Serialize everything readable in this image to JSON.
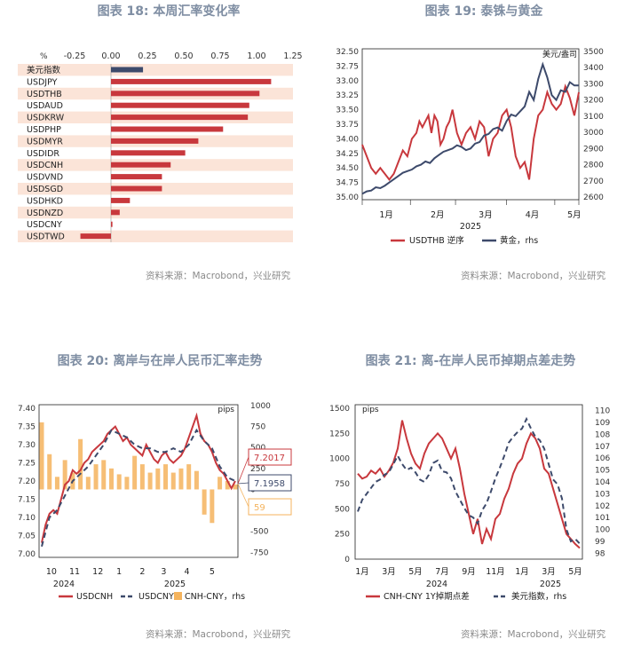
{
  "panels": [
    {
      "title": "图表 18: 本周汇率变化率",
      "source": "资料来源：Macrobond，兴业研究"
    },
    {
      "title": "图表 19: 泰铢与黄金",
      "source": "资料来源：Macrobond，兴业研究"
    },
    {
      "title": "图表 20: 离岸与在岸人民币汇率走势",
      "source": "资料来源：Macrobond，兴业研究"
    },
    {
      "title": "图表 21: 离-在岸人民币掉期点差走势",
      "source": "资料来源：Macrobond，兴业研究"
    }
  ],
  "colors": {
    "red": "#c8383d",
    "navy": "#3d4a6b",
    "orange": "#f4b35d",
    "band": "#fbe4d8",
    "title": "#7f8ea3"
  },
  "chart_data": [
    {
      "type": "bar",
      "unit": "%",
      "categories": [
        "美元指数",
        "USDJPY",
        "USDTHB",
        "USDAUD",
        "USDKRW",
        "USDPHP",
        "USDMYR",
        "USDIDR",
        "USDCNH",
        "USDVND",
        "USDSGD",
        "USDHKD",
        "USDNZD",
        "USDCNY",
        "USDTWD"
      ],
      "values": [
        0.22,
        1.1,
        1.02,
        0.95,
        0.94,
        0.77,
        0.6,
        0.51,
        0.41,
        0.35,
        0.35,
        0.13,
        0.06,
        0.01,
        -0.21
      ],
      "highlight_index": 0,
      "xlim": [
        -0.25,
        1.25
      ],
      "xticks": [
        "-0.25",
        "0.00",
        "0.25",
        "0.50",
        "0.75",
        "1.00",
        "1.25"
      ],
      "orientation": "horizontal"
    },
    {
      "type": "line",
      "x_tick_labels": [
        "1月",
        "2月",
        "3月",
        "4月",
        "5月"
      ],
      "year_label": "2025",
      "left_axis_ticks": [
        "32.50",
        "32.75",
        "33.00",
        "33.25",
        "33.50",
        "33.75",
        "34.00",
        "34.25",
        "34.50",
        "34.75",
        "35.00"
      ],
      "left_ylim": [
        32.5,
        35.0
      ],
      "left_inverted": true,
      "right_axis_ticks": [
        "2600",
        "2700",
        "2800",
        "2900",
        "3000",
        "3100",
        "3200",
        "3300",
        "3400",
        "3500"
      ],
      "right_ylim": [
        2600,
        3500
      ],
      "right_unit": "美元/盎司",
      "series": [
        {
          "name": "USDTHB 逆序",
          "axis": "left",
          "style": "solid",
          "x": [
            0,
            3,
            6,
            9,
            12,
            15,
            18,
            21,
            24,
            27,
            30,
            33,
            36,
            38,
            40,
            42,
            44,
            46,
            48,
            50,
            52,
            54,
            56,
            58,
            60,
            63,
            66,
            69,
            72,
            75,
            78,
            81,
            84,
            87,
            90,
            93,
            96,
            99,
            102,
            105,
            108,
            111,
            114,
            117,
            120,
            123,
            126,
            129,
            132,
            135,
            138,
            141,
            144
          ],
          "values": [
            34.1,
            34.3,
            34.5,
            34.6,
            34.5,
            34.6,
            34.7,
            34.6,
            34.4,
            34.2,
            34.3,
            34.0,
            33.9,
            33.7,
            33.8,
            33.7,
            33.6,
            33.9,
            33.6,
            33.7,
            34.1,
            34.0,
            33.8,
            33.7,
            33.5,
            33.9,
            34.1,
            33.9,
            33.8,
            34.0,
            33.7,
            33.8,
            34.3,
            34.0,
            33.9,
            33.6,
            33.5,
            33.8,
            34.3,
            34.5,
            34.4,
            34.7,
            34.0,
            33.6,
            33.5,
            33.2,
            33.4,
            33.5,
            33.4,
            33.1,
            33.3,
            33.6,
            33.2
          ]
        },
        {
          "name": "黄金，rhs",
          "axis": "right",
          "style": "solid",
          "x": [
            0,
            3,
            6,
            9,
            12,
            15,
            18,
            21,
            24,
            27,
            30,
            33,
            36,
            39,
            42,
            45,
            48,
            51,
            54,
            57,
            60,
            63,
            66,
            69,
            72,
            75,
            78,
            81,
            84,
            87,
            90,
            93,
            96,
            99,
            102,
            105,
            108,
            111,
            114,
            117,
            120,
            123,
            126,
            129,
            132,
            135,
            138,
            141,
            144
          ],
          "values": [
            2620,
            2635,
            2640,
            2660,
            2655,
            2670,
            2690,
            2710,
            2730,
            2750,
            2760,
            2770,
            2790,
            2800,
            2820,
            2810,
            2840,
            2860,
            2880,
            2890,
            2900,
            2920,
            2910,
            2890,
            2900,
            2930,
            2940,
            2980,
            2990,
            3020,
            3030,
            3010,
            3070,
            3110,
            3100,
            3130,
            3160,
            3250,
            3200,
            3330,
            3420,
            3340,
            3230,
            3200,
            3260,
            3250,
            3310,
            3290,
            3290
          ]
        }
      ]
    },
    {
      "type": "line",
      "x_tick_labels": [
        "10",
        "11",
        "12",
        "1",
        "2",
        "3",
        "4",
        "5"
      ],
      "year_labels": [
        "2024",
        "2025"
      ],
      "left_axis_ticks": [
        "7.40",
        "7.35",
        "7.30",
        "7.25",
        "7.20",
        "7.15",
        "7.10",
        "7.05",
        "7.00"
      ],
      "left_ylim": [
        6.99,
        7.41
      ],
      "right_axis_ticks": [
        "1000",
        "750",
        "500",
        "250",
        "0",
        "-250",
        "-500",
        "-750"
      ],
      "right_ylim": [
        -810,
        1010
      ],
      "right_unit": "pips",
      "annotations": [
        "7.2017",
        "7.1958",
        "59"
      ],
      "series": [
        {
          "name": "USDCNH",
          "axis": "left",
          "style": "solid",
          "x": [
            0,
            2,
            4,
            6,
            8,
            10,
            12,
            14,
            16,
            18,
            20,
            22,
            24,
            26,
            28,
            30,
            32,
            34,
            36,
            38,
            40,
            42,
            44,
            46,
            48,
            50,
            52,
            54,
            56,
            58,
            60,
            62,
            64,
            66,
            68,
            70,
            72,
            74,
            76,
            78,
            80,
            82,
            84,
            86,
            88,
            90,
            92,
            94,
            96,
            98,
            100
          ],
          "values": [
            7.03,
            7.08,
            7.11,
            7.12,
            7.11,
            7.15,
            7.19,
            7.2,
            7.23,
            7.22,
            7.23,
            7.25,
            7.26,
            7.28,
            7.29,
            7.3,
            7.31,
            7.33,
            7.34,
            7.35,
            7.33,
            7.31,
            7.32,
            7.3,
            7.29,
            7.28,
            7.27,
            7.3,
            7.28,
            7.26,
            7.25,
            7.27,
            7.28,
            7.26,
            7.25,
            7.26,
            7.27,
            7.29,
            7.32,
            7.35,
            7.38,
            7.33,
            7.31,
            7.3,
            7.28,
            7.25,
            7.23,
            7.22,
            7.2,
            7.18,
            7.2
          ]
        },
        {
          "name": "USDCNY",
          "axis": "left",
          "style": "dashed",
          "x": [
            0,
            4,
            8,
            12,
            16,
            20,
            24,
            28,
            32,
            36,
            40,
            44,
            48,
            52,
            56,
            60,
            64,
            68,
            72,
            76,
            80,
            84,
            88,
            92,
            96,
            100
          ],
          "values": [
            7.02,
            7.1,
            7.12,
            7.16,
            7.2,
            7.22,
            7.24,
            7.27,
            7.3,
            7.34,
            7.33,
            7.32,
            7.3,
            7.29,
            7.29,
            7.28,
            7.28,
            7.29,
            7.28,
            7.3,
            7.34,
            7.31,
            7.29,
            7.24,
            7.21,
            7.2
          ]
        },
        {
          "name": "CNH-CNY，rhs",
          "axis": "right",
          "style": "bars",
          "x": [
            0,
            4,
            8,
            12,
            16,
            20,
            24,
            28,
            32,
            36,
            40,
            44,
            48,
            52,
            56,
            60,
            64,
            68,
            72,
            76,
            80,
            84,
            88,
            92,
            96,
            100
          ],
          "values": [
            800,
            420,
            150,
            350,
            200,
            600,
            150,
            300,
            350,
            250,
            180,
            150,
            400,
            300,
            200,
            250,
            300,
            200,
            250,
            300,
            220,
            -300,
            -400,
            150,
            100,
            59
          ]
        }
      ]
    },
    {
      "type": "line",
      "x_tick_labels": [
        "1月",
        "3月",
        "5月",
        "7月",
        "9月",
        "11月",
        "1月",
        "3月",
        "5月"
      ],
      "year_labels": [
        "2024",
        "2025"
      ],
      "left_axis_ticks": [
        "1500",
        "1250",
        "1000",
        "750",
        "500",
        "250",
        "0"
      ],
      "left_ylim": [
        0,
        1500
      ],
      "left_unit": "pips",
      "right_axis_ticks": [
        "110",
        "109",
        "108",
        "107",
        "106",
        "105",
        "104",
        "103",
        "102",
        "101",
        "100",
        "99",
        "98"
      ],
      "right_ylim": [
        97.5,
        110.5
      ],
      "series": [
        {
          "name": "CNH-CNY 1Y掉期点差",
          "axis": "left",
          "style": "solid",
          "x": [
            0,
            2,
            4,
            6,
            8,
            10,
            12,
            14,
            16,
            18,
            20,
            22,
            24,
            26,
            28,
            30,
            32,
            34,
            36,
            38,
            40,
            42,
            44,
            46,
            48,
            50,
            52,
            54,
            56,
            58,
            60,
            62,
            64,
            66,
            68,
            70,
            72,
            74,
            76,
            78,
            80,
            82,
            84,
            86,
            88,
            90,
            92,
            94,
            96,
            98,
            100
          ],
          "values": [
            850,
            800,
            820,
            880,
            850,
            900,
            820,
            880,
            960,
            1100,
            1380,
            1200,
            1050,
            950,
            900,
            1050,
            1150,
            1200,
            1250,
            1200,
            1100,
            1000,
            1100,
            900,
            650,
            450,
            250,
            400,
            150,
            300,
            200,
            400,
            450,
            600,
            700,
            850,
            950,
            1000,
            1150,
            1250,
            1200,
            1100,
            900,
            850,
            700,
            550,
            400,
            250,
            200,
            150,
            110
          ]
        },
        {
          "name": "美元指数，rhs",
          "axis": "right",
          "style": "dashed",
          "x": [
            0,
            2,
            4,
            6,
            8,
            10,
            12,
            14,
            16,
            18,
            20,
            22,
            24,
            26,
            28,
            30,
            32,
            34,
            36,
            38,
            40,
            42,
            44,
            46,
            48,
            50,
            52,
            54,
            56,
            58,
            60,
            62,
            64,
            66,
            68,
            70,
            72,
            74,
            76,
            78,
            80,
            82,
            84,
            86,
            88,
            90,
            92,
            94,
            96,
            98,
            100
          ],
          "values": [
            101.5,
            102.5,
            103,
            103.5,
            104,
            104.2,
            104.6,
            104.8,
            105.5,
            106.2,
            105.5,
            105.0,
            105.2,
            104.8,
            104.2,
            104.0,
            104.6,
            105.6,
            105.8,
            104.9,
            104.8,
            104.3,
            103.2,
            102.5,
            101.8,
            101.2,
            101.0,
            100.5,
            101.6,
            102.2,
            103.2,
            104.3,
            105.2,
            106.2,
            107.3,
            107.8,
            108.2,
            108.5,
            109.3,
            108.5,
            107.8,
            107.5,
            106.8,
            105.5,
            104.2,
            103.8,
            102.6,
            100.0,
            99.0,
            99.2,
            98.8
          ]
        }
      ]
    }
  ]
}
